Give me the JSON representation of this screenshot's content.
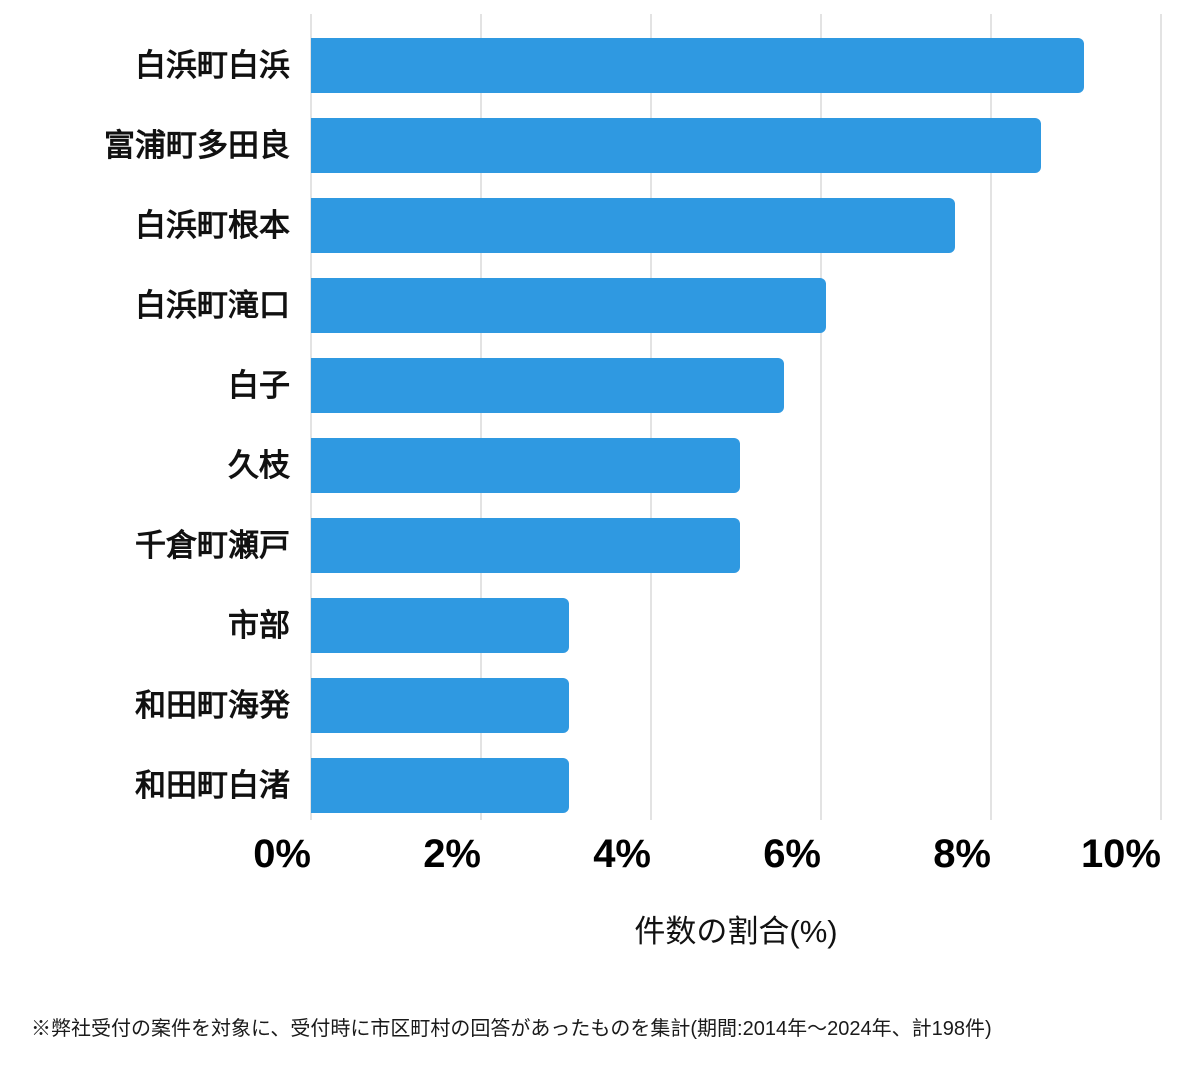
{
  "chart_data": {
    "type": "bar",
    "orientation": "horizontal",
    "title": "",
    "xlabel": "件数の割合(%)",
    "ylabel": "",
    "xlim": [
      0,
      10
    ],
    "xticks": [
      0,
      2,
      4,
      6,
      8,
      10
    ],
    "xtick_labels": [
      "0%",
      "2%",
      "4%",
      "6%",
      "8%",
      "10%"
    ],
    "grid": "vertical-only",
    "legend": "none",
    "categories": [
      "白浜町白浜",
      "富浦町多田良",
      "白浜町根本",
      "白浜町滝口",
      "白子",
      "久枝",
      "千倉町瀬戸",
      "市部",
      "和田町海発",
      "和田町白渚"
    ],
    "values": [
      9.09,
      8.59,
      7.58,
      6.06,
      5.56,
      5.05,
      5.05,
      3.03,
      3.03,
      3.03
    ],
    "bar_color": "#2F99E1"
  },
  "footnote": "※弊社受付の案件を対象に、受付時に市区町村の回答があったものを集計(期間:2014年〜2024年、計198件)",
  "colors": {
    "background": "#FFFFFF",
    "bar": "#2F99E1",
    "gridline": "#E3E3E3",
    "label_text": "#111111",
    "tick_text": "#000000",
    "footnote_text": "#1A1A1A"
  }
}
